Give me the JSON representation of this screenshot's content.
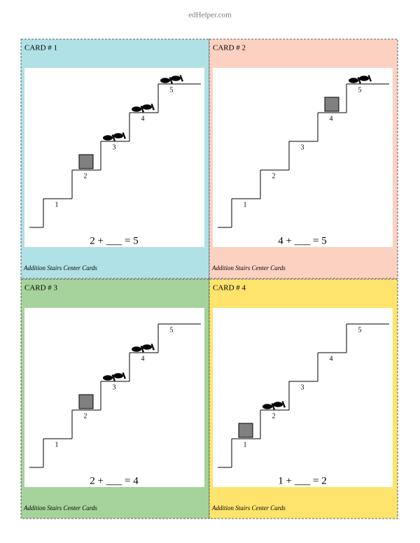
{
  "header": "edHelper.com",
  "cards": [
    {
      "title": "CARD # 1",
      "equation": "2 + ___ = 5",
      "steps": [
        1,
        2,
        3,
        4,
        5
      ],
      "square_step": 2,
      "footprint_steps": [
        3,
        4,
        5
      ],
      "color": "#b0e1e6",
      "footer": "Addition Stairs Center Cards"
    },
    {
      "title": "CARD # 2",
      "equation": "4 + ___ = 5",
      "steps": [
        1,
        2,
        3,
        4,
        5
      ],
      "square_step": 4,
      "footprint_steps": [
        5
      ],
      "color": "#fdd1c1",
      "footer": "Addition Stairs Center Cards"
    },
    {
      "title": "CARD # 3",
      "equation": "2 + ___ = 4",
      "steps": [
        1,
        2,
        3,
        4,
        5
      ],
      "square_step": 2,
      "footprint_steps": [
        3,
        4
      ],
      "color": "#a6d39c",
      "footer": "Addition Stairs Center Cards"
    },
    {
      "title": "CARD # 4",
      "equation": "1 + ___ = 2",
      "steps": [
        1,
        2,
        3,
        4,
        5
      ],
      "square_step": 1,
      "footprint_steps": [
        2
      ],
      "color": "#fee46c",
      "footer": "Addition Stairs Center Cards"
    }
  ]
}
